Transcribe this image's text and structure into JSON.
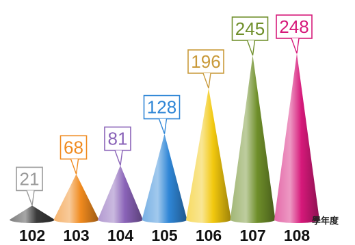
{
  "chart_data": {
    "type": "bar",
    "bar_shape": "cone",
    "categories": [
      "102",
      "103",
      "104",
      "105",
      "106",
      "107",
      "108"
    ],
    "values": [
      21,
      68,
      81,
      128,
      196,
      245,
      248
    ],
    "x_unit_label": "學年度",
    "title": "",
    "xlabel": "",
    "ylabel": "",
    "ylim": [
      0,
      248
    ],
    "grid": false,
    "legend": "none",
    "colors": [
      "#3a3a3a",
      "#f08a1e",
      "#8a63b8",
      "#2f86d6",
      "#f2c80e",
      "#6f8f2a",
      "#d6197a"
    ],
    "label_border_colors": [
      "#9a9a9a",
      "#f08a1e",
      "#8a63b8",
      "#2f86d6",
      "#c99a3a",
      "#6f8f2a",
      "#d6197a"
    ],
    "label_text_colors": [
      "#9a9a9a",
      "#f08a1e",
      "#8a63b8",
      "#2f86d6",
      "#c99a3a",
      "#6f8f2a",
      "#d6197a"
    ]
  }
}
